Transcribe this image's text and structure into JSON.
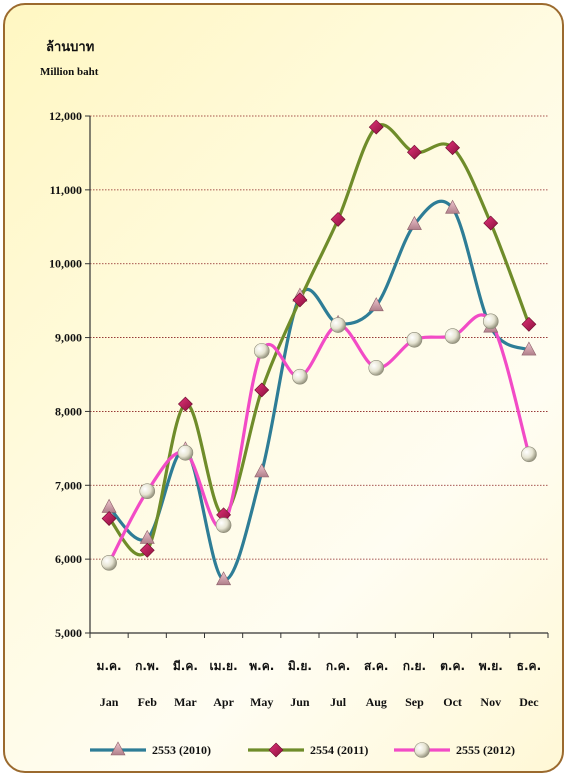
{
  "header": {
    "unit_th": "ล้านบาท",
    "unit_en": "Million baht"
  },
  "chart_data": {
    "type": "line",
    "title": "",
    "xlabel": "",
    "ylabel": "ล้านบาท / Million baht",
    "ylim": [
      5000,
      12000
    ],
    "yticks": [
      5000,
      6000,
      7000,
      8000,
      9000,
      10000,
      11000,
      12000
    ],
    "ytick_labels": [
      "5,000",
      "6,000",
      "7,000",
      "8,000",
      "9,000",
      "10,000",
      "11,000",
      "12,000"
    ],
    "categories_th": [
      "ม.ค.",
      "ก.พ.",
      "มี.ค.",
      "เม.ย.",
      "พ.ค.",
      "มิ.ย.",
      "ก.ค.",
      "ส.ค.",
      "ก.ย.",
      "ต.ค.",
      "พ.ย.",
      "ธ.ค."
    ],
    "categories": [
      "Jan",
      "Feb",
      "Mar",
      "Apr",
      "May",
      "Jun",
      "Jul",
      "Aug",
      "Sep",
      "Oct",
      "Nov",
      "Dec"
    ],
    "grid": true,
    "legend_position": "bottom",
    "series": [
      {
        "name": "2553  (2010)",
        "color": "#2e7d96",
        "marker": "triangle",
        "values": [
          6700,
          6280,
          7480,
          5720,
          7180,
          9560,
          9190,
          9430,
          10530,
          10750,
          9140,
          8830
        ]
      },
      {
        "name": "2554  (2011)",
        "color": "#6f8c2a",
        "marker": "diamond",
        "values": [
          6550,
          6120,
          8100,
          6600,
          8290,
          9510,
          10600,
          11850,
          11510,
          11570,
          10550,
          9180
        ]
      },
      {
        "name": "2555  (2012)",
        "color": "#f24bc6",
        "marker": "circle",
        "values": [
          5950,
          6920,
          7440,
          6460,
          8820,
          8470,
          9170,
          8590,
          8970,
          9020,
          9220,
          7420
        ]
      }
    ]
  }
}
